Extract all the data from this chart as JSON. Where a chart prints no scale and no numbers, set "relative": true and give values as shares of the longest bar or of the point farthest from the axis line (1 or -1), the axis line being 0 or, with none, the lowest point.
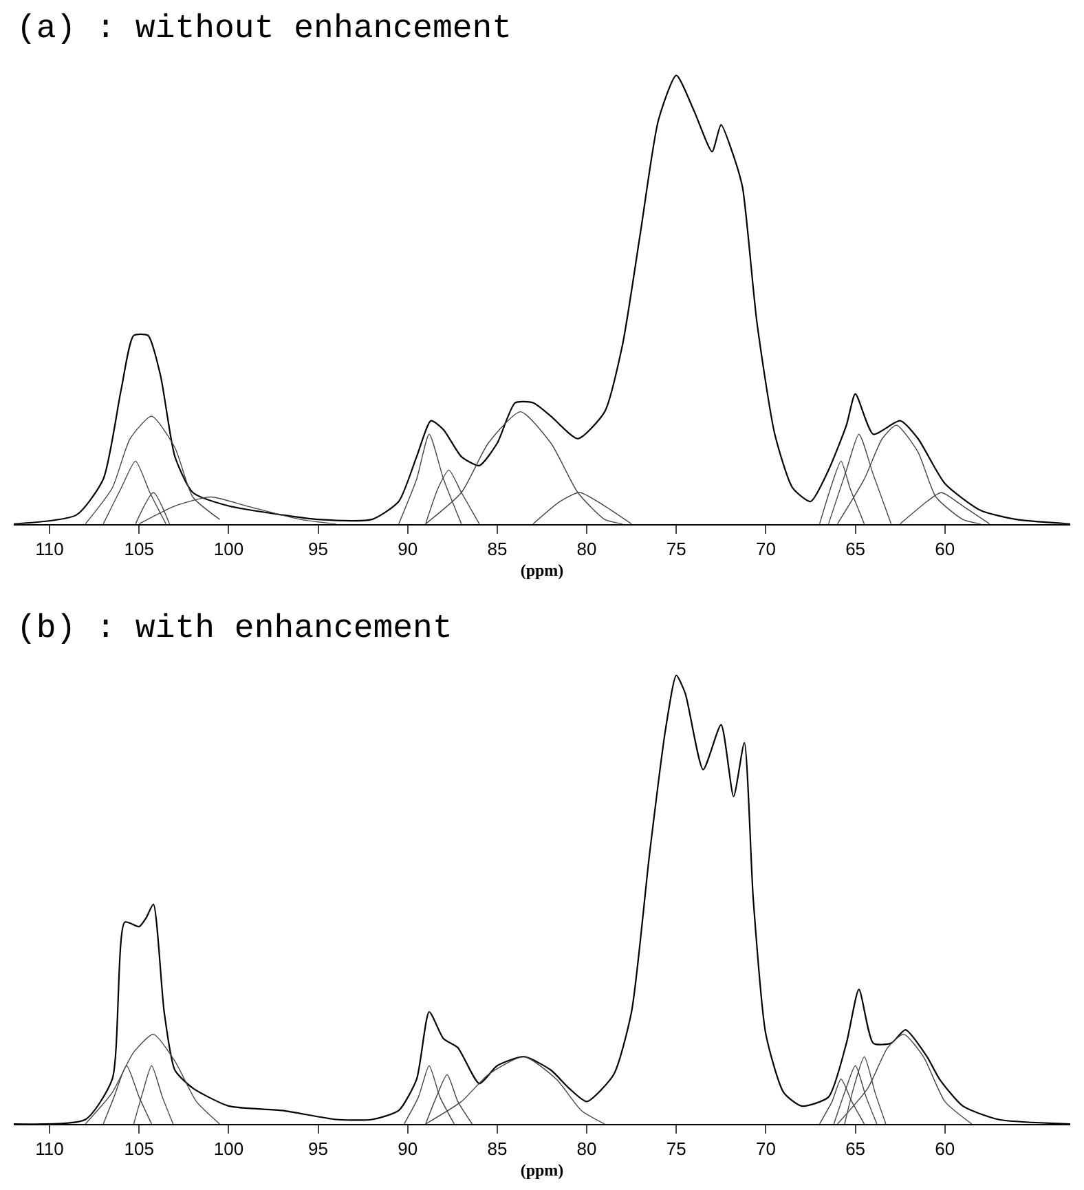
{
  "chart_data": [
    {
      "type": "line",
      "title": "(a) : without enhancement",
      "xlabel": "(ppm)",
      "relative": true,
      "xlim": [
        112,
        53
      ],
      "xticks": [
        110,
        105,
        100,
        95,
        90,
        85,
        80,
        75,
        70,
        65,
        60
      ],
      "tick_labels": "x",
      "grid": false,
      "marker": "none",
      "line_style": "solid",
      "series": [
        {
          "color": "#000000",
          "x": [
            112,
            108.5,
            107,
            106,
            105.3,
            104.5,
            103.8,
            103,
            102,
            100,
            97,
            95,
            92,
            90.5,
            89.5,
            88.7,
            88,
            87,
            86,
            85,
            84,
            83,
            82,
            80.5,
            79,
            78,
            77,
            76,
            75,
            74,
            73,
            72.5,
            71.8,
            71.3,
            70.5,
            69.5,
            68.5,
            67.5,
            66.5,
            65.5,
            65,
            64,
            62.5,
            61.5,
            60,
            58,
            56,
            53
          ],
          "values": [
            0,
            0.02,
            0.1,
            0.3,
            0.42,
            0.42,
            0.33,
            0.15,
            0.07,
            0.04,
            0.02,
            0.01,
            0.01,
            0.05,
            0.15,
            0.23,
            0.21,
            0.15,
            0.13,
            0.18,
            0.27,
            0.27,
            0.24,
            0.19,
            0.25,
            0.4,
            0.65,
            0.9,
            1.0,
            0.92,
            0.83,
            0.89,
            0.82,
            0.75,
            0.45,
            0.2,
            0.08,
            0.05,
            0.12,
            0.22,
            0.29,
            0.2,
            0.23,
            0.19,
            0.09,
            0.03,
            0.01,
            0
          ]
        },
        {
          "color": "#444444",
          "x": [
            108,
            106.5,
            105.5,
            104.3,
            103,
            102,
            100.5
          ],
          "values": [
            0,
            0.08,
            0.19,
            0.24,
            0.17,
            0.06,
            0.01
          ]
        },
        {
          "color": "#444444",
          "x": [
            107,
            106,
            105.2,
            104.4,
            103.5
          ],
          "values": [
            0,
            0.08,
            0.14,
            0.07,
            0
          ]
        },
        {
          "color": "#444444",
          "x": [
            105.2,
            104.2,
            103.3
          ],
          "values": [
            0,
            0.07,
            0
          ]
        },
        {
          "color": "#444444",
          "x": [
            105,
            103,
            101,
            99,
            96,
            94
          ],
          "values": [
            0,
            0.04,
            0.06,
            0.04,
            0.01,
            0
          ]
        },
        {
          "color": "#444444",
          "x": [
            90.5,
            89.5,
            88.8,
            88,
            87
          ],
          "values": [
            0,
            0.1,
            0.2,
            0.1,
            0
          ]
        },
        {
          "color": "#444444",
          "x": [
            89,
            88.3,
            87.7,
            87,
            86
          ],
          "values": [
            0,
            0.08,
            0.12,
            0.07,
            0
          ]
        },
        {
          "color": "#444444",
          "x": [
            89,
            87,
            85.5,
            83.7,
            82,
            80.5,
            79,
            78
          ],
          "values": [
            0,
            0.07,
            0.18,
            0.25,
            0.18,
            0.07,
            0.01,
            0
          ]
        },
        {
          "color": "#444444",
          "x": [
            83,
            81.5,
            80.4,
            79,
            77.5
          ],
          "values": [
            0,
            0.05,
            0.07,
            0.04,
            0
          ]
        },
        {
          "color": "#444444",
          "x": [
            67,
            66.3,
            65.8,
            65.3,
            64.5
          ],
          "values": [
            0,
            0.09,
            0.14,
            0.08,
            0
          ]
        },
        {
          "color": "#444444",
          "x": [
            66.5,
            65.5,
            64.8,
            64,
            63
          ],
          "values": [
            0,
            0.12,
            0.2,
            0.11,
            0
          ]
        },
        {
          "color": "#444444",
          "x": [
            66,
            64.5,
            63.5,
            62.7,
            61.5,
            60.5,
            59,
            58
          ],
          "values": [
            0,
            0.1,
            0.19,
            0.22,
            0.16,
            0.06,
            0.01,
            0
          ]
        },
        {
          "color": "#444444",
          "x": [
            62.5,
            61,
            60.2,
            59,
            57.5
          ],
          "values": [
            0,
            0.05,
            0.07,
            0.04,
            0
          ]
        }
      ]
    },
    {
      "type": "line",
      "title": "(b) : with enhancement",
      "xlabel": "(ppm)",
      "relative": true,
      "xlim": [
        112,
        53
      ],
      "xticks": [
        110,
        105,
        100,
        95,
        90,
        85,
        80,
        75,
        70,
        65,
        60
      ],
      "tick_labels": "x",
      "grid": false,
      "marker": "none",
      "line_style": "solid",
      "series": [
        {
          "color": "#000000",
          "x": [
            112,
            108,
            106.5,
            105.8,
            105,
            104.6,
            104.2,
            103.6,
            103,
            102,
            100,
            97,
            94,
            92,
            90.5,
            89.5,
            88.8,
            88,
            87.2,
            86,
            85,
            83.5,
            82,
            81,
            80,
            78.5,
            77.5,
            76.5,
            75.6,
            75,
            74.5,
            73.5,
            72.5,
            71.8,
            71.2,
            70.7,
            70,
            69,
            68,
            66.5,
            65.5,
            64.8,
            64,
            63,
            62.2,
            61,
            60.3,
            59,
            57,
            53
          ],
          "values": [
            0,
            0.01,
            0.1,
            0.45,
            0.44,
            0.46,
            0.49,
            0.25,
            0.12,
            0.08,
            0.04,
            0.03,
            0.01,
            0.01,
            0.03,
            0.1,
            0.25,
            0.19,
            0.17,
            0.09,
            0.13,
            0.15,
            0.12,
            0.08,
            0.05,
            0.11,
            0.25,
            0.6,
            0.88,
            1.0,
            0.96,
            0.79,
            0.89,
            0.73,
            0.85,
            0.5,
            0.2,
            0.07,
            0.04,
            0.06,
            0.18,
            0.3,
            0.18,
            0.18,
            0.21,
            0.15,
            0.1,
            0.04,
            0.01,
            0
          ]
        },
        {
          "color": "#444444",
          "x": [
            108,
            106.5,
            105.3,
            104.2,
            103,
            101.8,
            100.5
          ],
          "values": [
            0,
            0.07,
            0.16,
            0.2,
            0.14,
            0.05,
            0
          ]
        },
        {
          "color": "#444444",
          "x": [
            107,
            106.4,
            105.7,
            105,
            104.3
          ],
          "values": [
            0,
            0.06,
            0.13,
            0.06,
            0
          ]
        },
        {
          "color": "#444444",
          "x": [
            105.3,
            104.8,
            104.3,
            103.7,
            103.1
          ],
          "values": [
            0,
            0.07,
            0.13,
            0.06,
            0
          ]
        },
        {
          "color": "#444444",
          "x": [
            90.2,
            89.4,
            88.8,
            88.2,
            87.4
          ],
          "values": [
            0,
            0.06,
            0.13,
            0.06,
            0
          ]
        },
        {
          "color": "#444444",
          "x": [
            89,
            88.4,
            87.8,
            87.2,
            86.4
          ],
          "values": [
            0,
            0.06,
            0.11,
            0.05,
            0
          ]
        },
        {
          "color": "#444444",
          "x": [
            89,
            87,
            85.5,
            83.5,
            81.7,
            80.3,
            79
          ],
          "values": [
            0,
            0.05,
            0.11,
            0.15,
            0.1,
            0.03,
            0
          ]
        },
        {
          "color": "#444444",
          "x": [
            67,
            66.3,
            65.8,
            65.2,
            64.5
          ],
          "values": [
            0,
            0.05,
            0.1,
            0.05,
            0
          ]
        },
        {
          "color": "#444444",
          "x": [
            66.2,
            65.6,
            65,
            64.4,
            63.8
          ],
          "values": [
            0,
            0.07,
            0.13,
            0.06,
            0
          ]
        },
        {
          "color": "#444444",
          "x": [
            65.6,
            65.1,
            64.5,
            63.9,
            63.3
          ],
          "values": [
            0,
            0.08,
            0.15,
            0.07,
            0
          ]
        },
        {
          "color": "#444444",
          "x": [
            66,
            64.3,
            63.2,
            62.3,
            61.2,
            60,
            58.5
          ],
          "values": [
            0,
            0.08,
            0.17,
            0.2,
            0.15,
            0.05,
            0
          ]
        }
      ]
    }
  ]
}
